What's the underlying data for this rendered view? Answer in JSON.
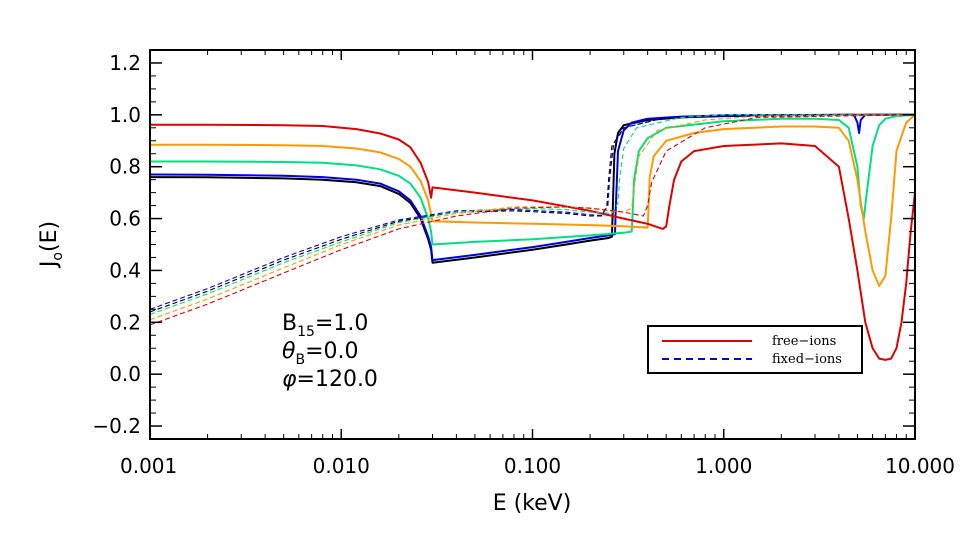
{
  "chart_data": {
    "type": "line",
    "xscale": "log",
    "xlim": [
      0.001,
      10.0
    ],
    "ylim": [
      -0.25,
      1.25
    ],
    "xlabel": "E (keV)",
    "ylabel": {
      "main": "J",
      "sub": "o",
      "tail": "(E)"
    },
    "xticks": [
      {
        "value": 0.001,
        "label": "0.001"
      },
      {
        "value": 0.01,
        "label": "0.010"
      },
      {
        "value": 0.1,
        "label": "0.100"
      },
      {
        "value": 1.0,
        "label": "1.000"
      },
      {
        "value": 10.0,
        "label": "10.000"
      }
    ],
    "yticks": [
      {
        "value": -0.2,
        "label": "−0.2"
      },
      {
        "value": 0.0,
        "label": "0.0"
      },
      {
        "value": 0.2,
        "label": "0.2"
      },
      {
        "value": 0.4,
        "label": "0.4"
      },
      {
        "value": 0.6,
        "label": "0.6"
      },
      {
        "value": 0.8,
        "label": "0.8"
      },
      {
        "value": 1.0,
        "label": "1.0"
      },
      {
        "value": 1.2,
        "label": "1.2"
      }
    ],
    "annotations": [
      {
        "main": "B",
        "sub": "15",
        "tail": "=1.0"
      },
      {
        "main": "θ",
        "sub": "B",
        "tail": "=0.0"
      },
      {
        "main": "φ",
        "sub": "",
        "tail": "=120.0"
      }
    ],
    "legend": {
      "position": "lower-right",
      "entries": [
        {
          "label": "free−ions",
          "style": "solid",
          "color": "#e00000"
        },
        {
          "label": "fixed−ions",
          "style": "dashed",
          "color": "#0000e0"
        }
      ]
    },
    "series": [
      {
        "name": "black-solid",
        "color": "#000000",
        "style": "solid",
        "x": [
          0.001,
          0.002,
          0.005,
          0.008,
          0.012,
          0.016,
          0.02,
          0.023,
          0.026,
          0.0285,
          0.0295,
          0.03,
          0.05,
          0.1,
          0.15,
          0.2,
          0.25,
          0.26,
          0.262,
          0.268,
          0.28,
          0.3,
          0.4,
          0.6,
          1,
          2,
          5,
          10
        ],
        "y": [
          0.76,
          0.759,
          0.755,
          0.75,
          0.74,
          0.725,
          0.695,
          0.66,
          0.6,
          0.52,
          0.48,
          0.43,
          0.45,
          0.48,
          0.5,
          0.515,
          0.525,
          0.53,
          0.6,
          0.85,
          0.93,
          0.96,
          0.98,
          0.99,
          0.995,
          0.998,
          1.0,
          1.0
        ]
      },
      {
        "name": "blue-solid",
        "color": "#0000e0",
        "style": "solid",
        "x": [
          0.001,
          0.002,
          0.005,
          0.008,
          0.012,
          0.016,
          0.02,
          0.023,
          0.026,
          0.0285,
          0.0295,
          0.03,
          0.05,
          0.1,
          0.15,
          0.2,
          0.25,
          0.27,
          0.272,
          0.28,
          0.3,
          0.33,
          0.4,
          0.6,
          1,
          2,
          4,
          4.8,
          5,
          5.1,
          5.2,
          5.5,
          6,
          10
        ],
        "y": [
          0.77,
          0.769,
          0.765,
          0.76,
          0.75,
          0.735,
          0.705,
          0.67,
          0.61,
          0.53,
          0.49,
          0.44,
          0.46,
          0.49,
          0.51,
          0.525,
          0.535,
          0.54,
          0.62,
          0.86,
          0.94,
          0.97,
          0.985,
          0.993,
          0.997,
          0.999,
          1.0,
          1.0,
          0.97,
          0.93,
          0.98,
          1.0,
          1.0,
          1.0
        ]
      },
      {
        "name": "green-solid",
        "color": "#00e080",
        "style": "solid",
        "x": [
          0.001,
          0.002,
          0.005,
          0.008,
          0.012,
          0.016,
          0.02,
          0.023,
          0.026,
          0.0285,
          0.0295,
          0.03,
          0.05,
          0.1,
          0.2,
          0.3,
          0.33,
          0.333,
          0.34,
          0.36,
          0.4,
          0.5,
          1,
          2,
          3,
          4,
          4.5,
          5,
          5.2,
          5.4,
          5.6,
          6,
          6.5,
          7,
          8,
          10
        ],
        "y": [
          0.82,
          0.82,
          0.818,
          0.815,
          0.805,
          0.79,
          0.765,
          0.735,
          0.68,
          0.6,
          0.55,
          0.5,
          0.51,
          0.52,
          0.535,
          0.545,
          0.55,
          0.6,
          0.75,
          0.86,
          0.91,
          0.95,
          0.975,
          0.985,
          0.985,
          0.98,
          0.95,
          0.8,
          0.65,
          0.6,
          0.7,
          0.88,
          0.96,
          0.985,
          0.995,
          1.0
        ]
      },
      {
        "name": "orange-solid",
        "color": "#ff9900",
        "style": "solid",
        "x": [
          0.001,
          0.002,
          0.005,
          0.008,
          0.012,
          0.016,
          0.02,
          0.023,
          0.026,
          0.0285,
          0.03,
          0.05,
          0.1,
          0.2,
          0.3,
          0.4,
          0.403,
          0.41,
          0.43,
          0.5,
          0.7,
          1,
          2,
          3,
          4,
          4.5,
          5,
          5.5,
          6,
          6.5,
          7,
          7.5,
          8,
          9,
          10
        ],
        "y": [
          0.885,
          0.885,
          0.883,
          0.88,
          0.87,
          0.855,
          0.83,
          0.8,
          0.745,
          0.67,
          0.59,
          0.585,
          0.58,
          0.575,
          0.57,
          0.565,
          0.62,
          0.76,
          0.84,
          0.9,
          0.93,
          0.945,
          0.955,
          0.955,
          0.95,
          0.9,
          0.75,
          0.55,
          0.4,
          0.34,
          0.38,
          0.6,
          0.86,
          0.97,
          1.0
        ]
      },
      {
        "name": "red-solid",
        "color": "#e00000",
        "style": "solid",
        "x": [
          0.001,
          0.002,
          0.005,
          0.008,
          0.012,
          0.016,
          0.02,
          0.023,
          0.026,
          0.0285,
          0.0295,
          0.03,
          0.05,
          0.1,
          0.2,
          0.3,
          0.4,
          0.48,
          0.5,
          0.52,
          0.55,
          0.6,
          0.7,
          1,
          2,
          3,
          4,
          4.5,
          5,
          5.5,
          6,
          6.5,
          7,
          7.5,
          8,
          8.5,
          9,
          9.5,
          10
        ],
        "y": [
          0.962,
          0.962,
          0.96,
          0.957,
          0.945,
          0.928,
          0.905,
          0.875,
          0.815,
          0.74,
          0.68,
          0.72,
          0.7,
          0.67,
          0.63,
          0.6,
          0.58,
          0.56,
          0.57,
          0.65,
          0.75,
          0.82,
          0.86,
          0.88,
          0.89,
          0.88,
          0.8,
          0.6,
          0.4,
          0.2,
          0.1,
          0.06,
          0.055,
          0.06,
          0.1,
          0.2,
          0.35,
          0.55,
          0.7
        ]
      },
      {
        "name": "black-dashed",
        "color": "#000000",
        "style": "dashed",
        "x": [
          0.001,
          0.002,
          0.005,
          0.01,
          0.02,
          0.04,
          0.08,
          0.15,
          0.2,
          0.23,
          0.245,
          0.25,
          0.26,
          0.3,
          0.5,
          1,
          10
        ],
        "y": [
          0.24,
          0.32,
          0.44,
          0.52,
          0.59,
          0.625,
          0.63,
          0.62,
          0.61,
          0.61,
          0.65,
          0.75,
          0.88,
          0.95,
          0.99,
          1.0,
          1.0
        ]
      },
      {
        "name": "blue-dashed",
        "color": "#0000e0",
        "style": "dashed",
        "x": [
          0.001,
          0.002,
          0.005,
          0.01,
          0.02,
          0.04,
          0.08,
          0.15,
          0.2,
          0.23,
          0.248,
          0.253,
          0.265,
          0.3,
          0.5,
          1,
          10
        ],
        "y": [
          0.25,
          0.33,
          0.45,
          0.53,
          0.595,
          0.63,
          0.635,
          0.625,
          0.615,
          0.612,
          0.65,
          0.75,
          0.88,
          0.95,
          0.99,
          1.0,
          1.0
        ]
      },
      {
        "name": "green-dashed",
        "color": "#00e080",
        "style": "dashed",
        "x": [
          0.001,
          0.002,
          0.005,
          0.01,
          0.02,
          0.04,
          0.08,
          0.15,
          0.2,
          0.26,
          0.28,
          0.285,
          0.3,
          0.35,
          0.6,
          1,
          10
        ],
        "y": [
          0.23,
          0.31,
          0.43,
          0.51,
          0.585,
          0.625,
          0.64,
          0.635,
          0.625,
          0.62,
          0.66,
          0.75,
          0.87,
          0.95,
          0.99,
          1.0,
          1.0
        ]
      },
      {
        "name": "orange-dashed",
        "color": "#ff9900",
        "style": "dashed",
        "x": [
          0.001,
          0.002,
          0.005,
          0.01,
          0.02,
          0.04,
          0.08,
          0.15,
          0.2,
          0.3,
          0.33,
          0.34,
          0.36,
          0.45,
          0.8,
          1.5,
          10
        ],
        "y": [
          0.21,
          0.29,
          0.41,
          0.5,
          0.575,
          0.62,
          0.645,
          0.645,
          0.64,
          0.625,
          0.64,
          0.72,
          0.84,
          0.94,
          0.98,
          0.995,
          1.0
        ]
      },
      {
        "name": "red-dashed",
        "color": "#e00000",
        "style": "dashed",
        "x": [
          0.001,
          0.002,
          0.005,
          0.01,
          0.02,
          0.04,
          0.08,
          0.15,
          0.2,
          0.3,
          0.38,
          0.4,
          0.42,
          0.5,
          0.8,
          1.5,
          10
        ],
        "y": [
          0.19,
          0.27,
          0.39,
          0.48,
          0.56,
          0.61,
          0.64,
          0.645,
          0.64,
          0.625,
          0.61,
          0.65,
          0.74,
          0.86,
          0.95,
          0.99,
          1.0
        ]
      }
    ]
  }
}
